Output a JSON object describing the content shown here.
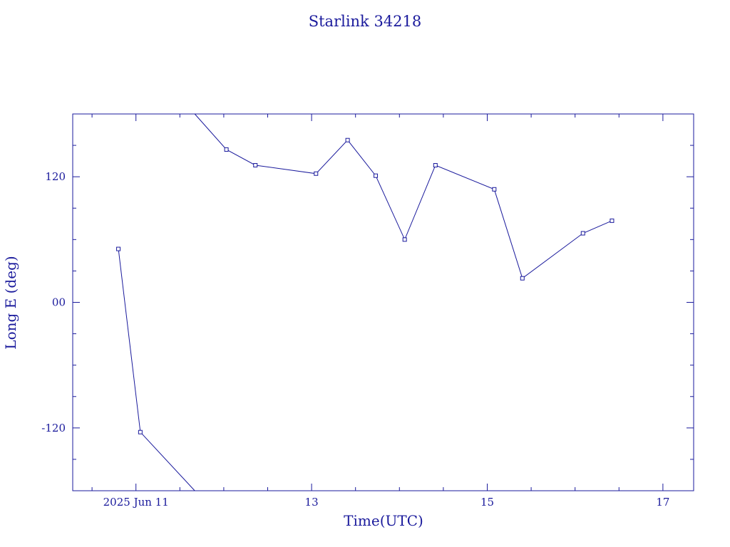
{
  "chart_data": {
    "type": "line",
    "title": "Starlink 34218",
    "xlabel": "Time(UTC)",
    "ylabel": "Long E (deg)",
    "x_unit": "day of June 2025 (UTC)",
    "xlim": [
      10.28,
      17.35
    ],
    "ylim": [
      -180,
      180
    ],
    "x_ticks": [
      {
        "value": 11,
        "label": "2025 Jun 11"
      },
      {
        "value": 13,
        "label": "13"
      },
      {
        "value": 15,
        "label": "15"
      },
      {
        "value": 17,
        "label": "17"
      }
    ],
    "x_minor_step": 0.5,
    "y_ticks": [
      {
        "value": 120,
        "label": "120"
      },
      {
        "value": 0,
        "label": "00"
      },
      {
        "value": -120,
        "label": "-120"
      }
    ],
    "y_minor_step": 30,
    "grid": false,
    "legend": "none",
    "color": "#1a1a9c",
    "segments": [
      {
        "x": [
          10.8,
          11.05,
          11.67
        ],
        "y": [
          51,
          -124,
          -180
        ]
      },
      {
        "x": [
          11.67,
          12.03,
          12.36,
          13.05,
          13.41,
          13.73,
          14.06,
          14.41,
          15.08,
          15.4,
          16.09,
          16.42
        ],
        "y": [
          180,
          146,
          131,
          123,
          155,
          121,
          60,
          131,
          108,
          23,
          66,
          78
        ]
      }
    ]
  }
}
